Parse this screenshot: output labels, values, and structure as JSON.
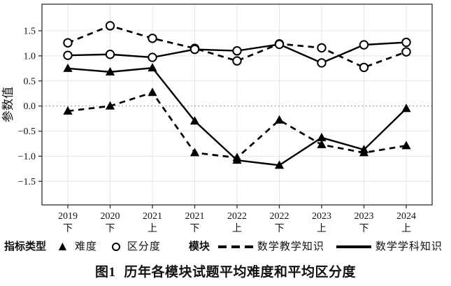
{
  "chart_data": {
    "type": "line",
    "title": "图1 历年各模块试题平均难度和平均区分度",
    "ylabel": "参数值",
    "xlabel": "",
    "grid": true,
    "legend_position": "bottom",
    "ylim": [
      -1.97,
      2.03
    ],
    "yticks": [
      {
        "value": 1.5,
        "label": "1.5"
      },
      {
        "value": 1.0,
        "label": "1.0"
      },
      {
        "value": 0.5,
        "label": "0.5"
      },
      {
        "value": 0.0,
        "label": "0.0"
      },
      {
        "value": -0.5,
        "label": "−0.5"
      },
      {
        "value": -1.0,
        "label": "−1.0"
      },
      {
        "value": -1.5,
        "label": "−1.5"
      }
    ],
    "zero_baseline": 0.0,
    "categories": [
      {
        "year": "2019",
        "half": "下"
      },
      {
        "year": "2020",
        "half": "下"
      },
      {
        "year": "2021",
        "half": "上"
      },
      {
        "year": "2021",
        "half": "下"
      },
      {
        "year": "2022",
        "half": "上"
      },
      {
        "year": "2022",
        "half": "下"
      },
      {
        "year": "2023",
        "half": "上"
      },
      {
        "year": "2023",
        "half": "下"
      },
      {
        "year": "2024",
        "half": "上"
      }
    ],
    "series": [
      {
        "name": "数学教学知识 难度",
        "module": "数学教学知识",
        "indicator": "难度",
        "line": "dashed",
        "marker": "triangle",
        "values": [
          -0.1,
          0.0,
          0.27,
          -0.93,
          -1.03,
          -0.28,
          -0.77,
          -0.93,
          -0.79
        ]
      },
      {
        "name": "数学学科知识 难度",
        "module": "数学学科知识",
        "indicator": "难度",
        "line": "solid",
        "marker": "triangle",
        "values": [
          0.75,
          0.68,
          0.76,
          -0.3,
          -1.08,
          -1.18,
          -0.63,
          -0.87,
          -0.05
        ]
      },
      {
        "name": "数学教学知识 区分度",
        "module": "数学教学知识",
        "indicator": "区分度",
        "line": "dashed",
        "marker": "circle",
        "values": [
          1.26,
          1.6,
          1.35,
          1.15,
          0.9,
          1.24,
          1.16,
          0.77,
          1.08
        ]
      },
      {
        "name": "数学学科知识 区分度",
        "module": "数学学科知识",
        "indicator": "区分度",
        "line": "solid",
        "marker": "circle",
        "values": [
          1.01,
          1.03,
          0.97,
          1.13,
          1.1,
          1.23,
          0.86,
          1.22,
          1.27
        ]
      }
    ],
    "colors": {
      "line": "#000000",
      "grid": "#e4e4e4",
      "zero_line": "#8c8c8c",
      "border": "#4a4a4a"
    }
  },
  "legend": {
    "indicator_title": "指标类型",
    "items": [
      {
        "icon": "triangle",
        "label": "难度"
      },
      {
        "icon": "circle",
        "label": "区分度"
      }
    ],
    "module_title": "模块",
    "modules": [
      {
        "line": "dashed",
        "label": "数学教学知识"
      },
      {
        "line": "solid",
        "label": "数学学科知识"
      }
    ]
  },
  "caption": {
    "prefix": "图1",
    "text": "历年各模块试题平均难度和平均区分度"
  }
}
